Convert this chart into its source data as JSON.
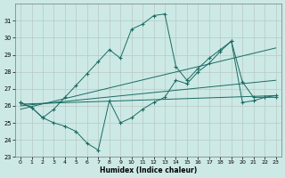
{
  "xlabel": "Humidex (Indice chaleur)",
  "xlim": [
    -0.5,
    23.5
  ],
  "ylim": [
    23,
    32
  ],
  "yticks": [
    23,
    24,
    25,
    26,
    27,
    28,
    29,
    30,
    31
  ],
  "xticks": [
    0,
    1,
    2,
    3,
    4,
    5,
    6,
    7,
    8,
    9,
    10,
    11,
    12,
    13,
    14,
    15,
    16,
    17,
    18,
    19,
    20,
    21,
    22,
    23
  ],
  "bg_color": "#cce9e5",
  "grid_color": "#b8c8c4",
  "line_color": "#1a6b63",
  "line1_x": [
    0,
    1,
    2,
    3,
    4,
    5,
    6,
    7,
    8,
    9,
    10,
    11,
    12,
    13,
    14,
    15,
    16,
    17,
    18,
    19,
    20,
    21,
    22,
    23
  ],
  "line1_y": [
    26.2,
    25.9,
    25.3,
    25.0,
    24.8,
    24.5,
    23.8,
    23.4,
    26.3,
    25.0,
    25.3,
    25.8,
    26.2,
    26.5,
    27.5,
    27.3,
    28.0,
    28.5,
    29.2,
    29.8,
    26.2,
    26.3,
    26.5,
    26.5
  ],
  "line2_x": [
    0,
    1,
    2,
    3,
    4,
    5,
    6,
    7,
    8,
    9,
    10,
    11,
    12,
    13,
    14,
    15,
    16,
    17,
    18,
    19,
    20,
    21,
    22,
    23
  ],
  "line2_y": [
    26.2,
    25.9,
    25.3,
    25.8,
    26.5,
    27.2,
    27.9,
    28.6,
    29.3,
    28.8,
    30.5,
    30.8,
    31.3,
    31.4,
    28.3,
    27.5,
    28.2,
    28.8,
    29.3,
    29.8,
    27.4,
    26.5,
    26.5,
    26.6
  ],
  "trend1_x": [
    0,
    23
  ],
  "trend1_y": [
    26.1,
    26.6
  ],
  "trend2_x": [
    0,
    23
  ],
  "trend2_y": [
    26.0,
    27.5
  ],
  "trend3_x": [
    0,
    23
  ],
  "trend3_y": [
    25.8,
    29.4
  ],
  "figsize": [
    3.2,
    2.0
  ],
  "dpi": 100
}
